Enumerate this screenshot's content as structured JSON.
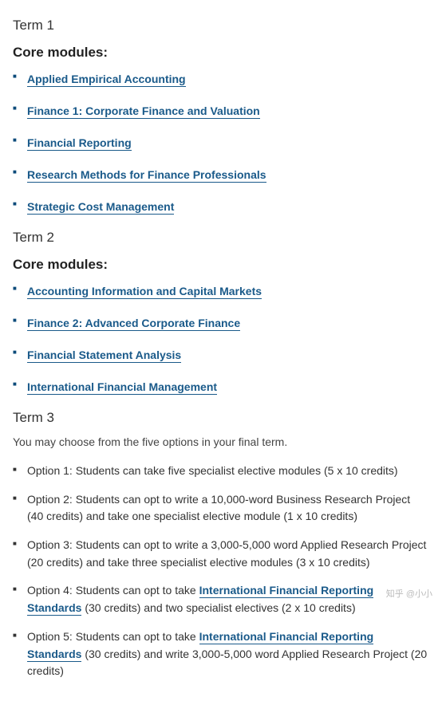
{
  "term1": {
    "title": "Term 1",
    "coreLabel": "Core modules:",
    "modules": [
      "Applied Empirical Accounting",
      "Finance 1: Corporate Finance and Valuation",
      "Financial Reporting",
      "Research Methods for Finance Professionals",
      "Strategic Cost Management"
    ]
  },
  "term2": {
    "title": "Term 2",
    "coreLabel": "Core modules:",
    "modules": [
      "Accounting Information and Capital Markets",
      "Finance 2: Advanced Corporate Finance",
      "Financial Statement Analysis",
      "International Financial Management"
    ]
  },
  "term3": {
    "title": "Term 3",
    "note": "You may choose from the five options in your final term.",
    "options": [
      {
        "prefix": "Option 1: Students can take five specialist elective modules (5 x 10 credits)",
        "link": "",
        "suffix": ""
      },
      {
        "prefix": "Option 2: Students can opt to write a 10,000-word Business Research Project (40 credits) and take one specialist elective module (1 x 10 credits)",
        "link": "",
        "suffix": ""
      },
      {
        "prefix": "Option 3: Students can opt to write a 3,000-5,000 word Applied Research Project (20 credits) and take three specialist elective modules (3 x 10 credits)",
        "link": "",
        "suffix": ""
      },
      {
        "prefix": "Option 4: Students can opt to take ",
        "link": "International Financial Reporting Standards",
        "suffix": " (30 credits) and two specialist electives (2 x 10 credits)"
      },
      {
        "prefix": "Option 5: Students can opt to take ",
        "link": "International Financial Reporting Standards",
        "suffix": " (30 credits) and write 3,000-5,000 word Applied Research Project (20 credits)"
      }
    ]
  },
  "watermark": "知乎 @小小",
  "colors": {
    "link": "#1a5a8a",
    "text": "#333",
    "bullet_link": "#0b4a7a"
  }
}
